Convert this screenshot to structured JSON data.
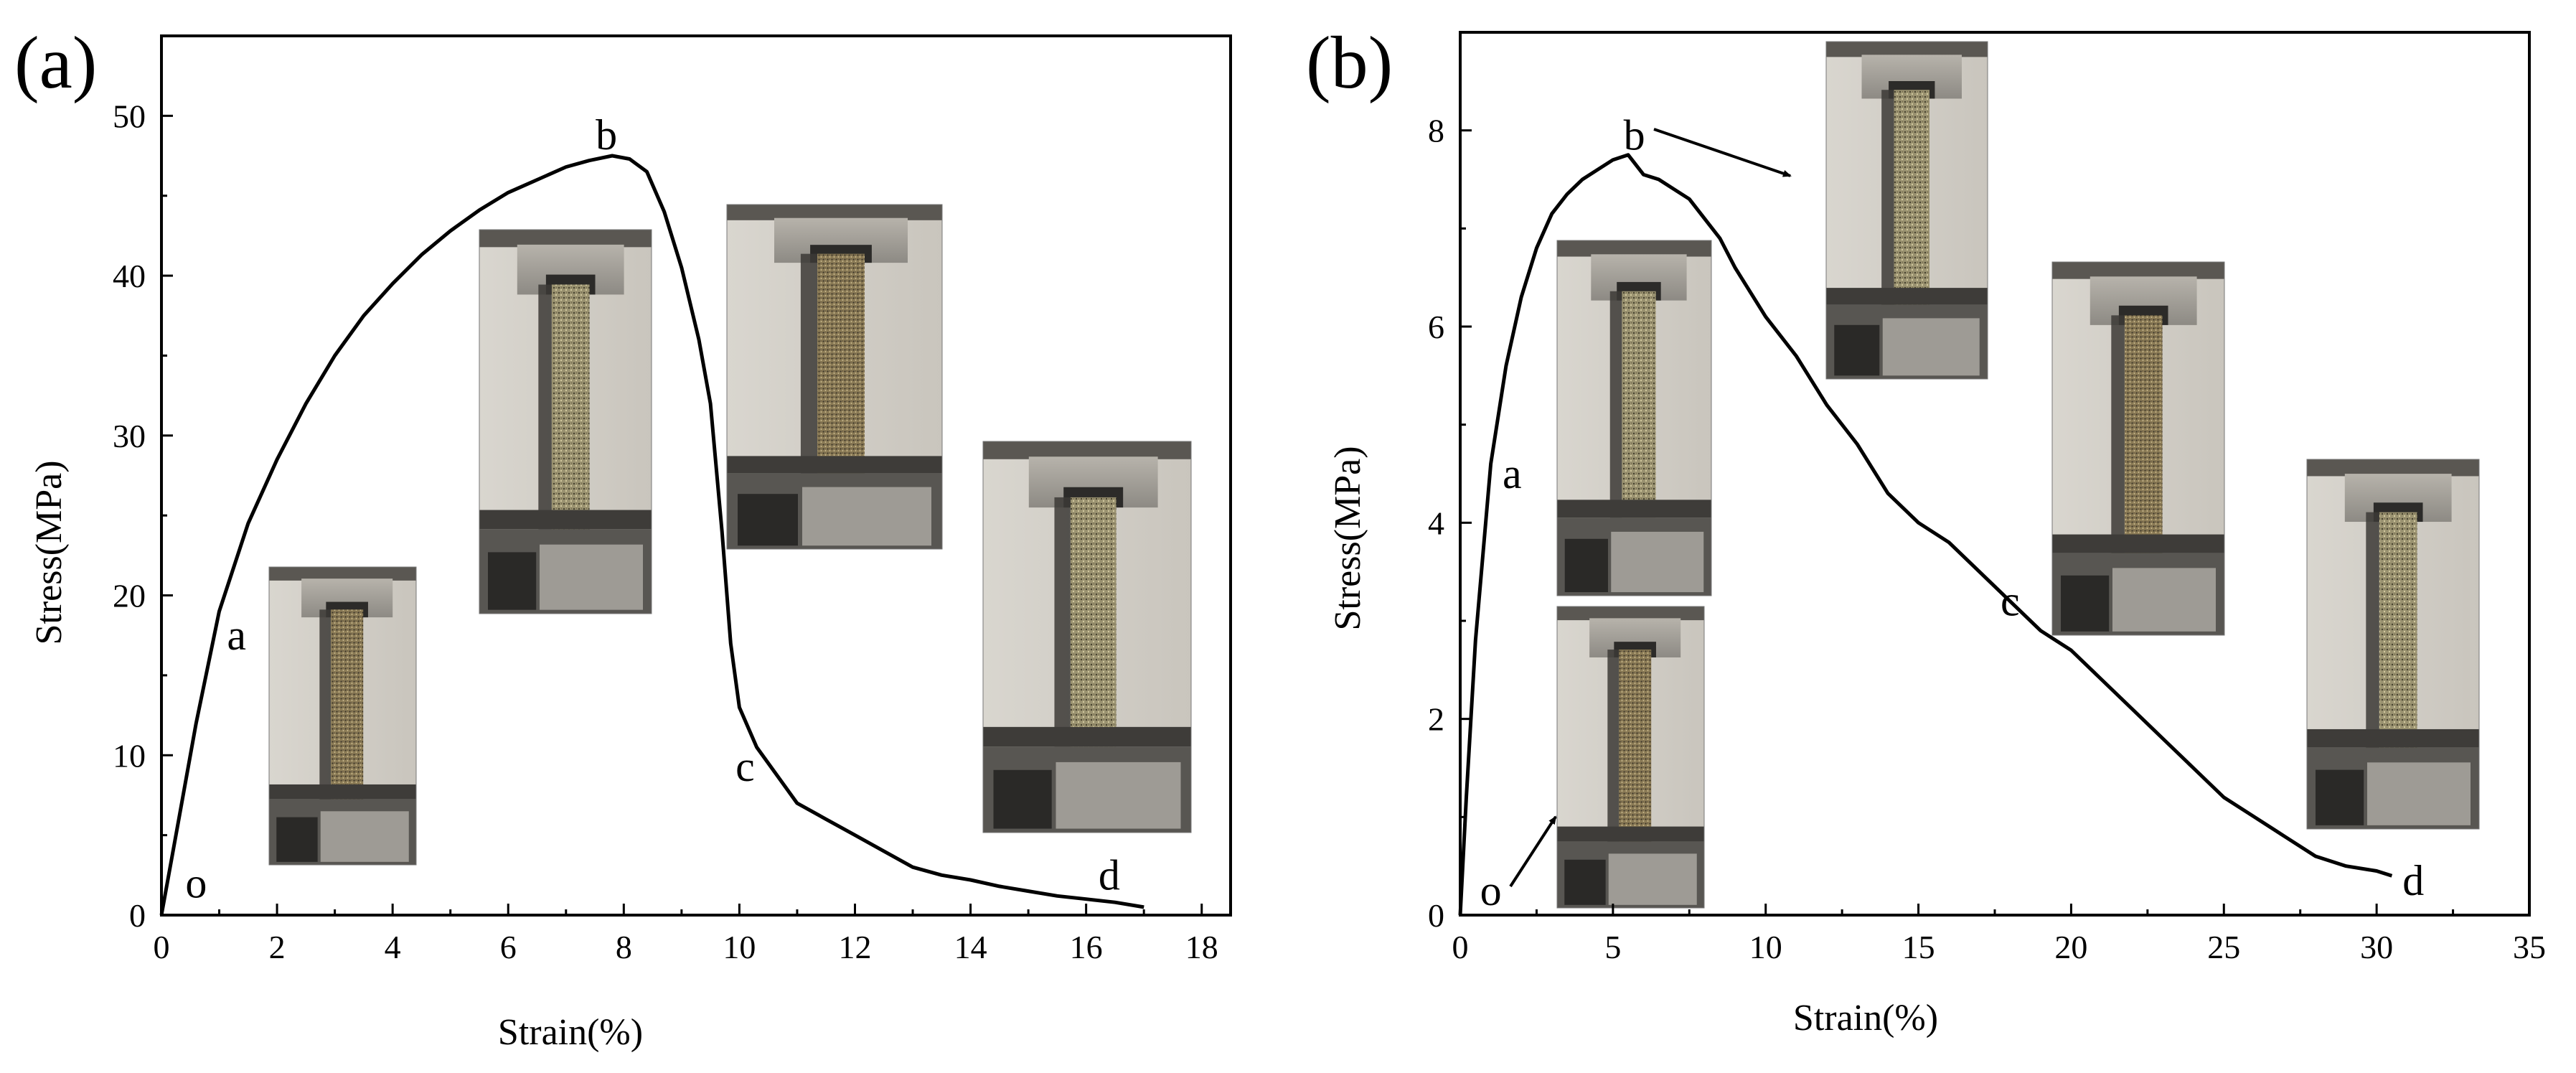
{
  "chart_data": [
    {
      "panel_label": "(a)",
      "type": "line",
      "xlabel": "Strain(%)",
      "ylabel": "Stress(MPa)",
      "xlim": [
        0,
        18.5
      ],
      "ylim": [
        0,
        55
      ],
      "xticks": [
        0,
        2,
        4,
        6,
        8,
        10,
        12,
        14,
        16,
        18
      ],
      "yticks": [
        0,
        10,
        20,
        30,
        40,
        50
      ],
      "grid": false,
      "series": [
        {
          "x": [
            0,
            0.3,
            0.6,
            1.0,
            1.5,
            2.0,
            2.5,
            3.0,
            3.5,
            4.0,
            4.5,
            5.0,
            5.5,
            6.0,
            6.5,
            7.0,
            7.4,
            7.8,
            8.1,
            8.4,
            8.7,
            9.0,
            9.3,
            9.5,
            9.7,
            9.85,
            10.0,
            10.3,
            10.7,
            11.0,
            11.5,
            12.0,
            12.5,
            13.0,
            13.5,
            14.0,
            14.5,
            15.0,
            15.5,
            16.0,
            16.5,
            17.0
          ],
          "y": [
            0,
            6,
            12,
            19,
            24.5,
            28.5,
            32,
            35,
            37.5,
            39.5,
            41.3,
            42.8,
            44.1,
            45.2,
            46.0,
            46.8,
            47.2,
            47.5,
            47.3,
            46.5,
            44,
            40.5,
            36,
            32,
            24,
            17,
            13,
            10.5,
            8.5,
            7,
            6,
            5,
            4,
            3,
            2.5,
            2.2,
            1.8,
            1.5,
            1.2,
            1,
            0.8,
            0.5
          ]
        }
      ],
      "annotations": [
        {
          "text": "o",
          "x": 0.6,
          "y": 2
        },
        {
          "text": "a",
          "x": 1.3,
          "y": 17.5
        },
        {
          "text": "b",
          "x": 7.7,
          "y": 48.8
        },
        {
          "text": "c",
          "x": 10.1,
          "y": 9.3
        },
        {
          "text": "d",
          "x": 16.4,
          "y": 2.5
        }
      ],
      "photos": [
        {
          "name": "specimen-photo-1"
        },
        {
          "name": "specimen-photo-2"
        },
        {
          "name": "specimen-photo-3"
        },
        {
          "name": "specimen-photo-4"
        }
      ]
    },
    {
      "panel_label": "(b)",
      "type": "line",
      "xlabel": "Strain(%)",
      "ylabel": "Stress(MPa)",
      "xlim": [
        0,
        35
      ],
      "ylim": [
        0,
        9
      ],
      "xticks": [
        0,
        5,
        10,
        15,
        20,
        25,
        30,
        35
      ],
      "yticks": [
        0,
        2,
        4,
        6,
        8
      ],
      "grid": false,
      "series": [
        {
          "x": [
            0,
            0.2,
            0.5,
            1.0,
            1.5,
            2.0,
            2.5,
            3.0,
            3.5,
            4.0,
            4.5,
            5.0,
            5.5,
            6.0,
            6.5,
            7.0,
            7.5,
            8.0,
            8.5,
            9.0,
            10.0,
            11.0,
            12.0,
            13.0,
            14.0,
            15.0,
            16.0,
            17.0,
            18.0,
            19.0,
            20.0,
            21.0,
            22.0,
            23.0,
            24.0,
            25.0,
            26.0,
            27.0,
            28.0,
            29.0,
            30.0,
            30.5
          ],
          "y": [
            0,
            1.2,
            2.8,
            4.6,
            5.6,
            6.3,
            6.8,
            7.15,
            7.35,
            7.5,
            7.6,
            7.7,
            7.75,
            7.55,
            7.5,
            7.4,
            7.3,
            7.1,
            6.9,
            6.6,
            6.1,
            5.7,
            5.2,
            4.8,
            4.3,
            4.0,
            3.8,
            3.5,
            3.2,
            2.9,
            2.7,
            2.4,
            2.1,
            1.8,
            1.5,
            1.2,
            1.0,
            0.8,
            0.6,
            0.5,
            0.45,
            0.4
          ]
        }
      ],
      "annotations": [
        {
          "text": "o",
          "x": 1.0,
          "y": 0.25
        },
        {
          "text": "a",
          "x": 1.7,
          "y": 4.5
        },
        {
          "text": "b",
          "x": 5.7,
          "y": 7.95
        },
        {
          "text": "c",
          "x": 18.0,
          "y": 3.2
        },
        {
          "text": "d",
          "x": 31.2,
          "y": 0.35
        }
      ],
      "photos": [
        {
          "name": "specimen-photo-1"
        },
        {
          "name": "specimen-photo-2"
        },
        {
          "name": "specimen-photo-3"
        },
        {
          "name": "specimen-photo-4"
        },
        {
          "name": "specimen-photo-5"
        }
      ]
    }
  ]
}
